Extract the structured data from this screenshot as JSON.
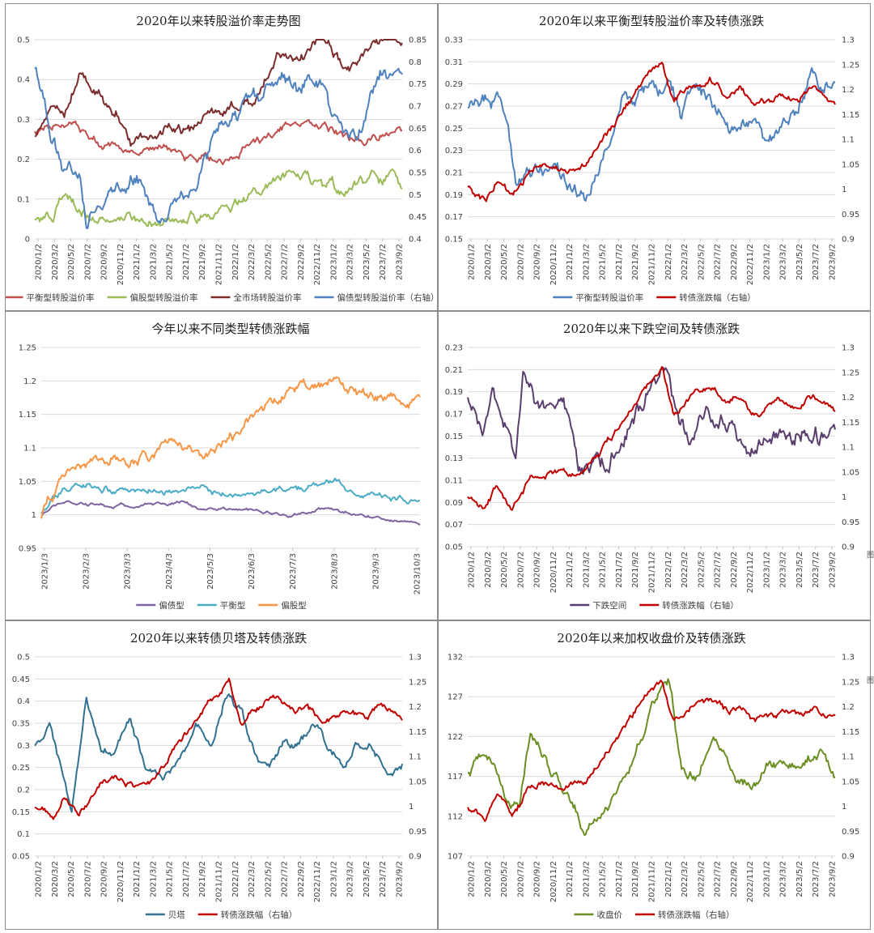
{
  "chart_data": [
    {
      "id": "c1",
      "type": "line",
      "title": "2020年以来转股溢价率走势图",
      "x_ticks": [
        "2020/1/2",
        "2020/3/2",
        "2020/5/2",
        "2020/7/2",
        "2020/9/2",
        "2020/11/2",
        "2021/1/2",
        "2021/3/2",
        "2021/5/2",
        "2021/7/2",
        "2021/9/2",
        "2021/11/2",
        "2022/1/2",
        "2022/3/2",
        "2022/5/2",
        "2022/7/2",
        "2022/9/2",
        "2022/11/2",
        "2023/1/2",
        "2023/3/2",
        "2023/5/2",
        "2023/7/2",
        "2023/9/2"
      ],
      "y_left": {
        "ticks": [
          "0",
          "0.1",
          "0.2",
          "0.3",
          "0.4",
          "0.5"
        ],
        "min": 0,
        "max": 0.5
      },
      "y_right": {
        "ticks": [
          "0.4",
          "0.45",
          "0.5",
          "0.55",
          "0.6",
          "0.65",
          "0.7",
          "0.75",
          "0.8",
          "0.85"
        ],
        "min": 0.4,
        "max": 0.85
      },
      "series": [
        {
          "name": "平衡型转股溢价率",
          "axis": "left",
          "color": "#c0504d",
          "knots": [
            0,
            0.27,
            0.06,
            0.28,
            0.12,
            0.28,
            0.18,
            0.24,
            0.26,
            0.22,
            0.35,
            0.23,
            0.42,
            0.2,
            0.52,
            0.2,
            0.6,
            0.24,
            0.72,
            0.3,
            0.82,
            0.27,
            0.9,
            0.24,
            1,
            0.28
          ],
          "noise": 0.008
        },
        {
          "name": "偏股型转股溢价率",
          "axis": "left",
          "color": "#9bbb59",
          "knots": [
            0,
            0.06,
            0.05,
            0.05,
            0.08,
            0.11,
            0.16,
            0.05,
            0.3,
            0.04,
            0.45,
            0.06,
            0.52,
            0.07,
            0.62,
            0.12,
            0.7,
            0.18,
            0.8,
            0.13,
            0.86,
            0.11,
            0.92,
            0.17,
            1,
            0.14
          ],
          "noise": 0.012
        },
        {
          "name": "全市场转股溢价率",
          "axis": "left",
          "color": "#7b2c2c",
          "knots": [
            0,
            0.26,
            0.05,
            0.35,
            0.08,
            0.3,
            0.12,
            0.42,
            0.22,
            0.32,
            0.26,
            0.24,
            0.35,
            0.28,
            0.43,
            0.27,
            0.47,
            0.32,
            0.55,
            0.33,
            0.6,
            0.35,
            0.66,
            0.48,
            0.72,
            0.44,
            0.78,
            0.51,
            0.84,
            0.43,
            0.88,
            0.43,
            0.92,
            0.49,
            1,
            0.5
          ],
          "noise": 0.012
        },
        {
          "name": "偏债型转股溢价率（右轴）",
          "axis": "right",
          "color": "#4f81bd",
          "knots": [
            0,
            0.79,
            0.04,
            0.65,
            0.08,
            0.56,
            0.12,
            0.55,
            0.14,
            0.45,
            0.17,
            0.48,
            0.2,
            0.52,
            0.28,
            0.54,
            0.31,
            0.47,
            0.35,
            0.43,
            0.4,
            0.48,
            0.44,
            0.5,
            0.46,
            0.58,
            0.52,
            0.68,
            0.55,
            0.68,
            0.6,
            0.72,
            0.66,
            0.76,
            0.72,
            0.73,
            0.78,
            0.77,
            0.81,
            0.68,
            0.84,
            0.64,
            0.88,
            0.65,
            0.92,
            0.73,
            0.96,
            0.78,
            1,
            0.79
          ],
          "noise": 0.015
        }
      ],
      "legend": "bottom"
    },
    {
      "id": "c2",
      "type": "line",
      "title": "2020年以来平衡型转股溢价率及转债涨跌",
      "x_ticks": [
        "2020/1/2",
        "2020/3/2",
        "2020/5/2",
        "2020/7/2",
        "2020/9/2",
        "2020/11/2",
        "2021/1/2",
        "2021/3/2",
        "2021/5/2",
        "2021/7/2",
        "2021/9/2",
        "2021/11/2",
        "2022/1/2",
        "2022/3/2",
        "2022/5/2",
        "2022/7/2",
        "2022/9/2",
        "2022/11/2",
        "2023/1/2",
        "2023/3/2",
        "2023/5/2",
        "2023/7/2",
        "2023/9/2"
      ],
      "y_left": {
        "ticks": [
          "0.15",
          "0.17",
          "0.19",
          "0.21",
          "0.23",
          "0.25",
          "0.27",
          "0.29",
          "0.31",
          "0.33"
        ],
        "min": 0.15,
        "max": 0.33
      },
      "y_right": {
        "ticks": [
          "0.9",
          "0.95",
          "1",
          "1.05",
          "1.1",
          "1.15",
          "1.2",
          "1.25",
          "1.3"
        ],
        "min": 0.9,
        "max": 1.3
      },
      "series": [
        {
          "name": "平衡型转股溢价率",
          "axis": "left",
          "color": "#4f81bd",
          "knots": [
            0,
            0.265,
            0.05,
            0.275,
            0.08,
            0.28,
            0.11,
            0.255,
            0.13,
            0.2,
            0.16,
            0.21,
            0.2,
            0.215,
            0.24,
            0.21,
            0.27,
            0.2,
            0.33,
            0.19,
            0.37,
            0.23,
            0.42,
            0.275,
            0.47,
            0.29,
            0.52,
            0.28,
            0.55,
            0.3,
            0.58,
            0.26,
            0.6,
            0.29,
            0.65,
            0.275,
            0.7,
            0.26,
            0.74,
            0.25,
            0.78,
            0.26,
            0.82,
            0.24,
            0.86,
            0.255,
            0.9,
            0.265,
            0.94,
            0.3,
            0.97,
            0.28,
            1,
            0.285
          ],
          "noise": 0.006
        },
        {
          "name": "转债涨跌幅（右轴）",
          "axis": "right",
          "color": "#c00000",
          "knots": [
            0,
            1,
            0.05,
            0.98,
            0.08,
            1.02,
            0.12,
            0.98,
            0.14,
            1,
            0.17,
            1.04,
            0.22,
            1.05,
            0.28,
            1.04,
            0.32,
            1.05,
            0.37,
            1.1,
            0.42,
            1.15,
            0.46,
            1.2,
            0.5,
            1.23,
            0.53,
            1.25,
            0.56,
            1.17,
            0.6,
            1.2,
            0.66,
            1.22,
            0.71,
            1.19,
            0.74,
            1.2,
            0.78,
            1.17,
            0.82,
            1.18,
            0.86,
            1.19,
            0.9,
            1.18,
            0.94,
            1.2,
            1,
            1.18
          ],
          "noise": 0.006
        }
      ],
      "legend": "bottom"
    },
    {
      "id": "c3",
      "type": "line",
      "title": "今年以来不同类型转债涨跌幅",
      "x_ticks": [
        "2023/1/3",
        "2023/2/3",
        "2023/3/3",
        "2023/4/3",
        "2023/5/3",
        "2023/6/3",
        "2023/7/3",
        "2023/8/3",
        "2023/9/3",
        "2023/10/3"
      ],
      "y_left": {
        "ticks": [
          "0.95",
          "1",
          "1.05",
          "1.1",
          "1.15",
          "1.2",
          "1.25"
        ],
        "min": 0.95,
        "max": 1.25
      },
      "series": [
        {
          "name": "偏债型",
          "axis": "left",
          "color": "#8064a2",
          "knots": [
            0,
            1,
            0.06,
            1.02,
            0.15,
            1.015,
            0.3,
            1.015,
            0.38,
            1.02,
            0.42,
            1.01,
            0.55,
            1.005,
            0.65,
            0.998,
            0.75,
            1.01,
            0.85,
            1,
            0.9,
            0.995,
            1,
            0.988
          ],
          "noise": 0.002
        },
        {
          "name": "平衡型",
          "axis": "left",
          "color": "#4bacc6",
          "knots": [
            0,
            1,
            0.06,
            1.04,
            0.12,
            1.045,
            0.2,
            1.035,
            0.3,
            1.035,
            0.4,
            1.04,
            0.5,
            1.03,
            0.6,
            1.035,
            0.72,
            1.04,
            0.78,
            1.05,
            0.85,
            1.03,
            0.92,
            1.025,
            1,
            1.018
          ],
          "noise": 0.004
        },
        {
          "name": "偏股型",
          "axis": "left",
          "color": "#f79646",
          "knots": [
            0,
            1,
            0.05,
            1.05,
            0.1,
            1.08,
            0.16,
            1.09,
            0.24,
            1.08,
            0.32,
            1.1,
            0.38,
            1.1,
            0.44,
            1.09,
            0.52,
            1.12,
            0.58,
            1.17,
            0.64,
            1.18,
            0.72,
            1.19,
            0.78,
            1.205,
            0.84,
            1.18,
            0.9,
            1.17,
            1,
            1.17
          ],
          "noise": 0.007
        }
      ],
      "legend": "bottom"
    },
    {
      "id": "c4",
      "type": "line",
      "title": "2020年以来下跌空间及转债涨跌",
      "x_ticks": [
        "2020/1/2",
        "2020/3/2",
        "2020/5/2",
        "2020/7/2",
        "2020/9/2",
        "2020/11/2",
        "2021/1/2",
        "2021/3/2",
        "2021/5/2",
        "2021/7/2",
        "2021/9/2",
        "2021/11/2",
        "2022/1/2",
        "2022/3/2",
        "2022/5/2",
        "2022/7/2",
        "2022/9/2",
        "2022/11/2",
        "2023/1/2",
        "2023/3/2",
        "2023/5/2",
        "2023/7/2",
        "2023/9/2"
      ],
      "y_left": {
        "ticks": [
          "0.05",
          "0.07",
          "0.09",
          "0.11",
          "0.13",
          "0.15",
          "0.17",
          "0.19",
          "0.21",
          "0.23"
        ],
        "min": 0.05,
        "max": 0.23
      },
      "y_right": {
        "ticks": [
          "0.9",
          "0.95",
          "1",
          "1.05",
          "1.1",
          "1.15",
          "1.2",
          "1.25",
          "1.3"
        ],
        "min": 0.9,
        "max": 1.3
      },
      "series": [
        {
          "name": "下跌空间",
          "axis": "left",
          "color": "#5a3e6e",
          "knots": [
            0,
            0.19,
            0.04,
            0.16,
            0.07,
            0.185,
            0.1,
            0.16,
            0.13,
            0.13,
            0.15,
            0.2,
            0.2,
            0.17,
            0.26,
            0.18,
            0.3,
            0.12,
            0.36,
            0.12,
            0.42,
            0.15,
            0.46,
            0.17,
            0.5,
            0.2,
            0.54,
            0.21,
            0.57,
            0.16,
            0.6,
            0.15,
            0.65,
            0.18,
            0.7,
            0.16,
            0.74,
            0.15,
            0.78,
            0.14,
            0.82,
            0.15,
            0.88,
            0.15,
            0.94,
            0.155,
            1,
            0.145
          ],
          "noise": 0.007
        },
        {
          "name": "转债涨跌幅（右轴）",
          "axis": "right",
          "color": "#c00000",
          "knots": [
            0,
            1,
            0.05,
            0.98,
            0.08,
            1.02,
            0.12,
            0.98,
            0.14,
            1,
            0.17,
            1.04,
            0.22,
            1.05,
            0.28,
            1.04,
            0.32,
            1.05,
            0.37,
            1.1,
            0.42,
            1.15,
            0.46,
            1.2,
            0.5,
            1.23,
            0.53,
            1.25,
            0.56,
            1.17,
            0.6,
            1.2,
            0.66,
            1.22,
            0.71,
            1.19,
            0.74,
            1.2,
            0.78,
            1.17,
            0.82,
            1.18,
            0.86,
            1.19,
            0.9,
            1.18,
            0.94,
            1.2,
            1,
            1.18
          ],
          "noise": 0.006
        }
      ],
      "legend": "bottom"
    },
    {
      "id": "c5",
      "type": "line",
      "title": "2020年以来转债贝塔及转债涨跌",
      "x_ticks": [
        "2020/1/2",
        "2020/3/2",
        "2020/5/2",
        "2020/7/2",
        "2020/9/2",
        "2020/11/2",
        "2021/1/2",
        "2021/3/2",
        "2021/5/2",
        "2021/7/2",
        "2021/9/2",
        "2021/11/2",
        "2022/1/2",
        "2022/3/2",
        "2022/5/2",
        "2022/7/2",
        "2022/9/2",
        "2022/11/2",
        "2023/1/2",
        "2023/3/2",
        "2023/5/2",
        "2023/7/2",
        "2023/9/2"
      ],
      "y_left": {
        "ticks": [
          "0.05",
          "0.1",
          "0.15",
          "0.2",
          "0.25",
          "0.3",
          "0.35",
          "0.4",
          "0.45",
          "0.5"
        ],
        "min": 0.05,
        "max": 0.5
      },
      "y_right": {
        "ticks": [
          "0.9",
          "0.95",
          "1",
          "1.05",
          "1.1",
          "1.15",
          "1.2",
          "1.25",
          "1.3"
        ],
        "min": 0.9,
        "max": 1.3
      },
      "series": [
        {
          "name": "贝塔",
          "axis": "left",
          "color": "#31708f",
          "knots": [
            0,
            0.3,
            0.04,
            0.34,
            0.08,
            0.22,
            0.1,
            0.15,
            0.14,
            0.4,
            0.18,
            0.3,
            0.22,
            0.29,
            0.26,
            0.36,
            0.3,
            0.25,
            0.35,
            0.22,
            0.4,
            0.28,
            0.44,
            0.35,
            0.48,
            0.3,
            0.52,
            0.42,
            0.56,
            0.38,
            0.6,
            0.28,
            0.64,
            0.25,
            0.68,
            0.32,
            0.72,
            0.3,
            0.76,
            0.35,
            0.8,
            0.3,
            0.84,
            0.25,
            0.88,
            0.3,
            0.92,
            0.3,
            0.96,
            0.24,
            1,
            0.26
          ],
          "noise": 0.008
        },
        {
          "name": "转债涨跌幅（右轴）",
          "axis": "right",
          "color": "#c00000",
          "knots": [
            0,
            1,
            0.05,
            0.98,
            0.08,
            1.02,
            0.12,
            0.98,
            0.14,
            1,
            0.17,
            1.04,
            0.22,
            1.05,
            0.28,
            1.04,
            0.32,
            1.05,
            0.37,
            1.1,
            0.42,
            1.15,
            0.46,
            1.2,
            0.5,
            1.23,
            0.53,
            1.25,
            0.56,
            1.17,
            0.6,
            1.2,
            0.66,
            1.22,
            0.71,
            1.19,
            0.74,
            1.2,
            0.78,
            1.17,
            0.82,
            1.18,
            0.86,
            1.19,
            0.9,
            1.18,
            0.94,
            1.2,
            1,
            1.18
          ],
          "noise": 0.006
        }
      ],
      "legend": "bottom"
    },
    {
      "id": "c6",
      "type": "line",
      "title": "2020年以来加权收盘价及转债涨跌",
      "x_ticks": [
        "2020/1/2",
        "2020/3/2",
        "2020/5/2",
        "2020/7/2",
        "2020/9/2",
        "2020/11/2",
        "2021/1/2",
        "2021/3/2",
        "2021/5/2",
        "2021/7/2",
        "2021/9/2",
        "2021/11/2",
        "2022/1/2",
        "2022/3/2",
        "2022/5/2",
        "2022/7/2",
        "2022/9/2",
        "2022/11/2",
        "2023/1/2",
        "2023/3/2",
        "2023/5/2",
        "2023/7/2",
        "2023/9/2"
      ],
      "y_left": {
        "ticks": [
          "107",
          "112",
          "117",
          "122",
          "127",
          "132"
        ],
        "min": 107,
        "max": 132
      },
      "y_right": {
        "ticks": [
          "0.9",
          "0.95",
          "1",
          "1.05",
          "1.1",
          "1.15",
          "1.2",
          "1.25",
          "1.3"
        ],
        "min": 0.9,
        "max": 1.3
      },
      "series": [
        {
          "name": "收盘价",
          "axis": "left",
          "color": "#6b8e23",
          "knots": [
            0,
            117,
            0.05,
            120,
            0.1,
            115,
            0.14,
            113,
            0.17,
            123,
            0.22,
            118,
            0.28,
            115,
            0.32,
            110,
            0.38,
            113,
            0.44,
            118,
            0.48,
            123,
            0.52,
            128,
            0.55,
            129,
            0.58,
            118,
            0.62,
            117,
            0.67,
            122,
            0.7,
            120,
            0.73,
            117,
            0.78,
            116,
            0.82,
            119,
            0.88,
            118,
            0.92,
            119,
            0.96,
            120,
            1,
            117
          ],
          "noise": 0.6
        },
        {
          "name": "转债涨跌幅（右轴）",
          "axis": "right",
          "color": "#c00000",
          "knots": [
            0,
            1,
            0.05,
            0.98,
            0.08,
            1.02,
            0.12,
            0.98,
            0.14,
            1,
            0.17,
            1.04,
            0.22,
            1.05,
            0.28,
            1.04,
            0.32,
            1.05,
            0.37,
            1.1,
            0.42,
            1.15,
            0.46,
            1.2,
            0.5,
            1.23,
            0.53,
            1.25,
            0.56,
            1.17,
            0.6,
            1.2,
            0.66,
            1.22,
            0.71,
            1.19,
            0.74,
            1.2,
            0.78,
            1.17,
            0.82,
            1.18,
            0.86,
            1.19,
            0.9,
            1.18,
            0.94,
            1.2,
            1,
            1.18
          ],
          "noise": 0.006
        }
      ],
      "legend": "bottom"
    }
  ],
  "edge_text": "图"
}
